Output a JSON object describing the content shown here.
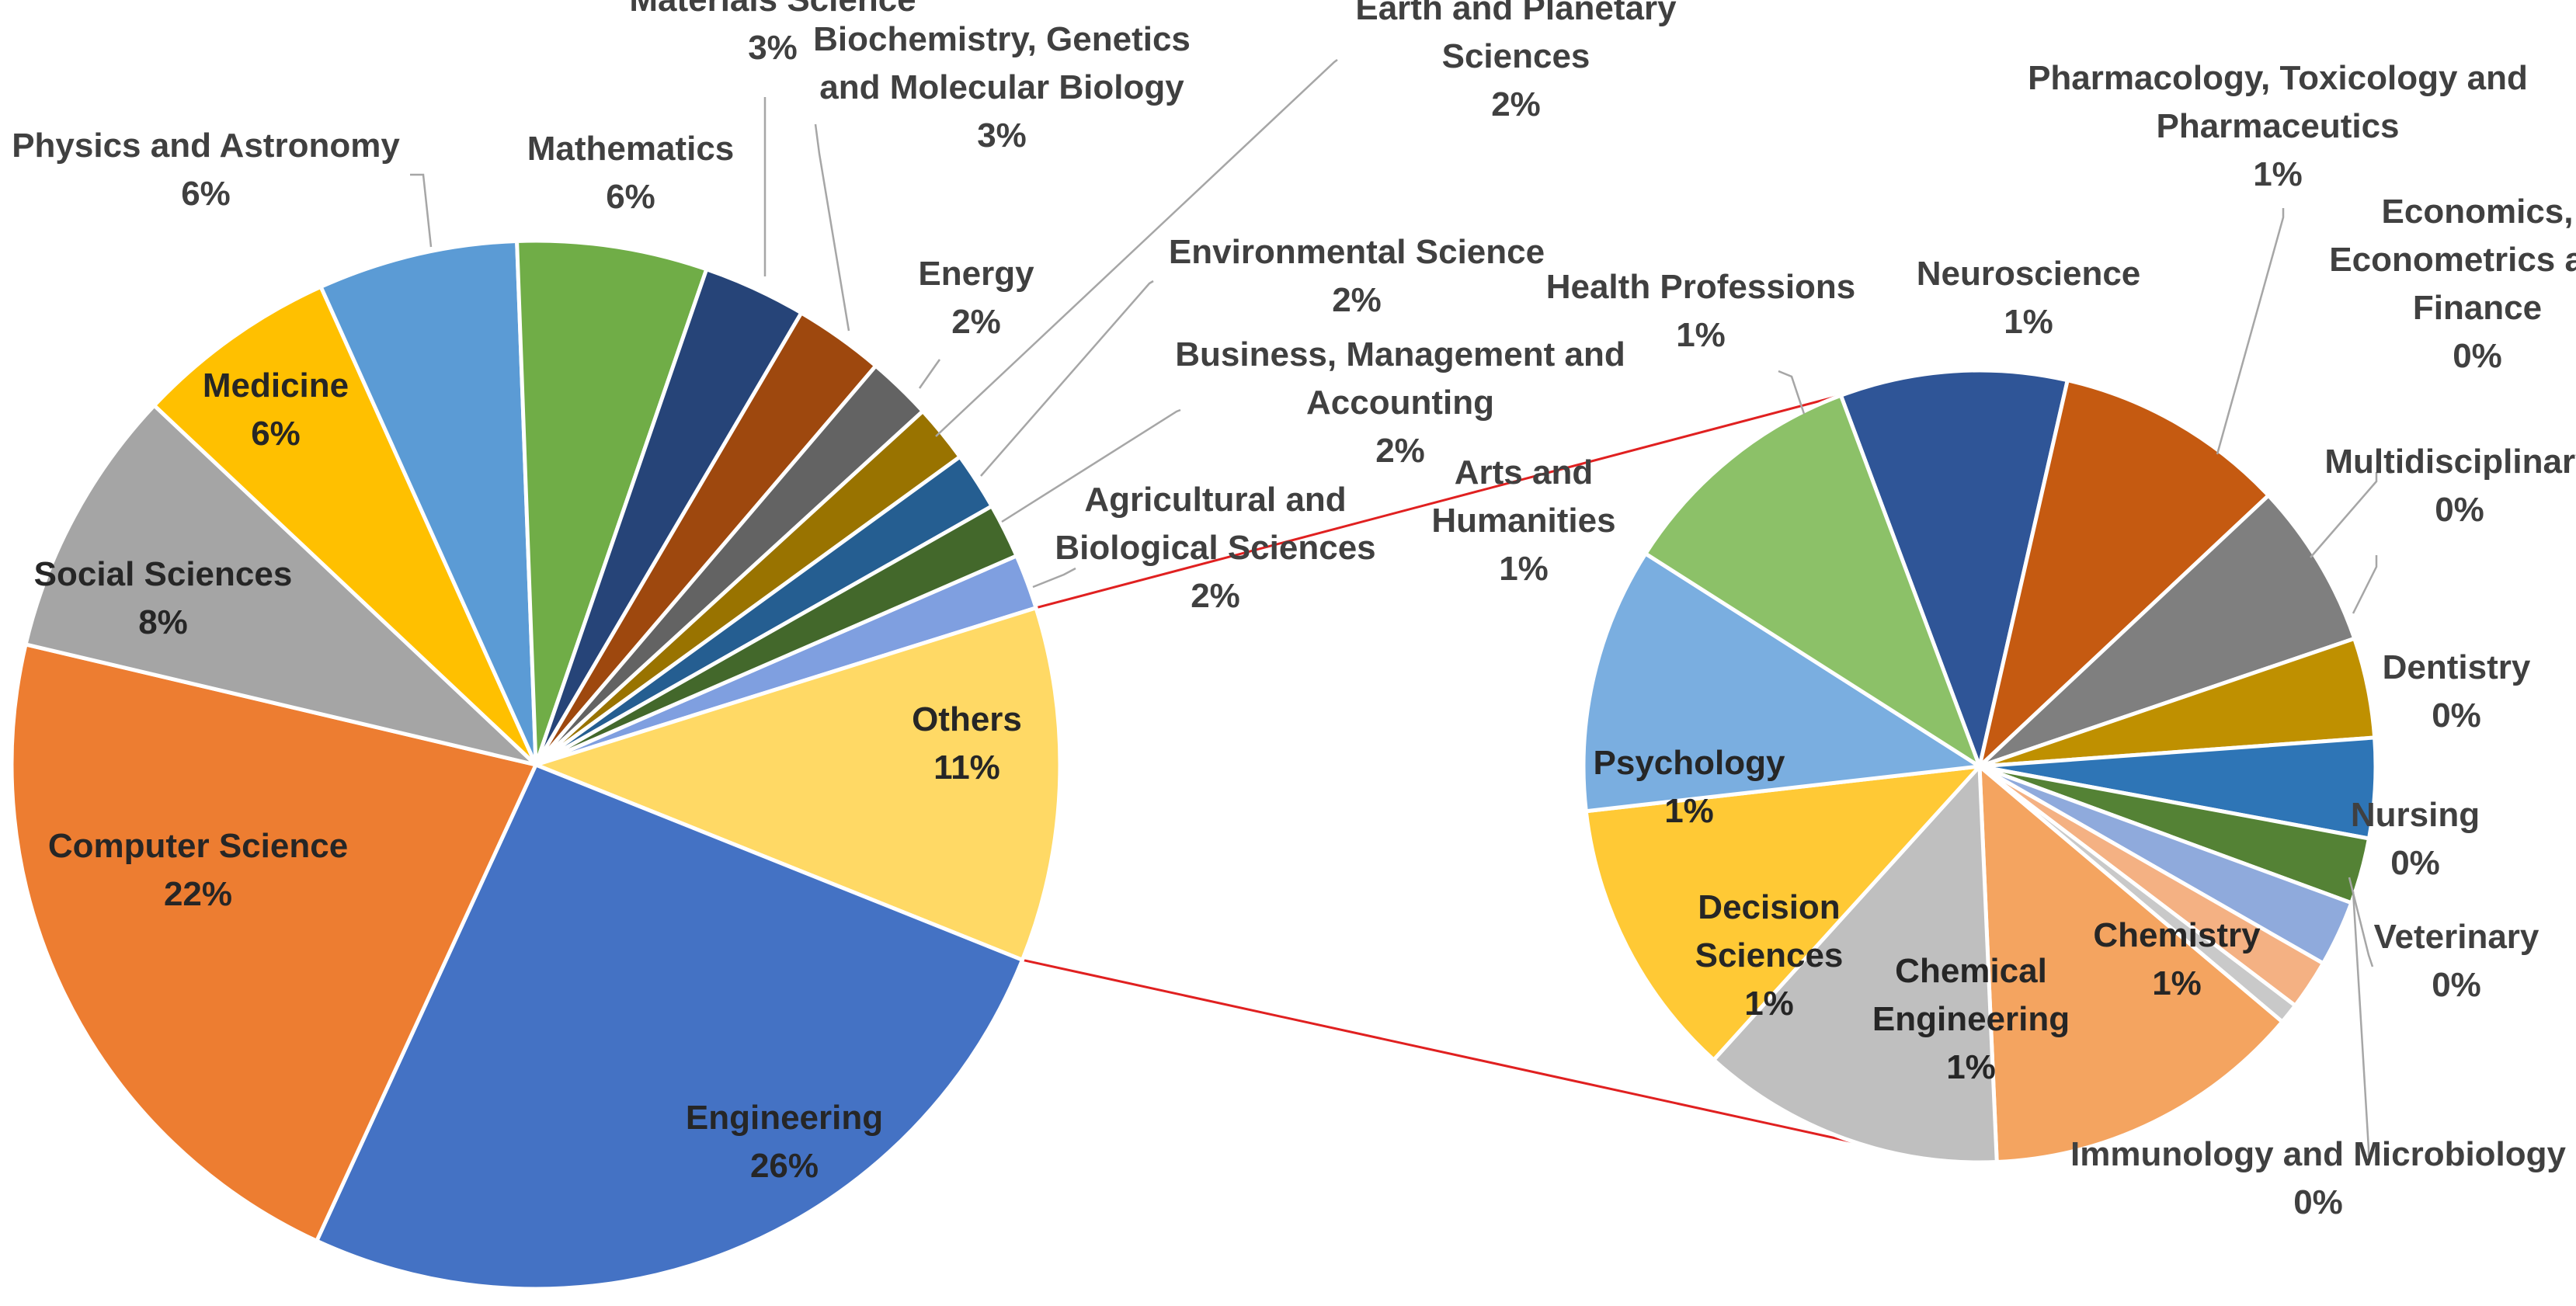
{
  "chart_data": [
    {
      "type": "pie",
      "name": "main",
      "slices": [
        {
          "label": "Agricultural and Biological Sciences",
          "lines": [
            "Agricultural and",
            "Biological Sciences"
          ],
          "pct_label": "2%",
          "value": 1.7,
          "color": "#7f9fe0"
        },
        {
          "label": "Others",
          "lines": [
            "Others"
          ],
          "pct_label": "11%",
          "value": 11,
          "color": "#ffd965"
        },
        {
          "label": "Engineering",
          "lines": [
            "Engineering"
          ],
          "pct_label": "26%",
          "value": 26,
          "color": "#4472c4"
        },
        {
          "label": "Computer Science",
          "lines": [
            "Computer Science"
          ],
          "pct_label": "22%",
          "value": 22,
          "color": "#ed7d31"
        },
        {
          "label": "Social Sciences",
          "lines": [
            "Social Sciences"
          ],
          "pct_label": "8%",
          "value": 8.4,
          "color": "#a5a5a5"
        },
        {
          "label": "Medicine",
          "lines": [
            "Medicine"
          ],
          "pct_label": "6%",
          "value": 6.3,
          "color": "#ffc000"
        },
        {
          "label": "Physics and Astronomy",
          "lines": [
            "Physics and Astronomy"
          ],
          "pct_label": "6%",
          "value": 6.2,
          "color": "#5b9bd5"
        },
        {
          "label": "Mathematics",
          "lines": [
            "Mathematics"
          ],
          "pct_label": "6%",
          "value": 5.9,
          "color": "#70ad47"
        },
        {
          "label": "Materials Science",
          "lines": [
            "Materials Science"
          ],
          "pct_label": "3%",
          "value": 3.2,
          "color": "#264478"
        },
        {
          "label": "Biochemistry, Genetics and Molecular Biology",
          "lines": [
            "Biochemistry, Genetics",
            "and Molecular Biology"
          ],
          "pct_label": "3%",
          "value": 2.8,
          "color": "#9e480e"
        },
        {
          "label": "Energy",
          "lines": [
            "Energy"
          ],
          "pct_label": "2%",
          "value": 2.0,
          "color": "#636363"
        },
        {
          "label": "Earth and Planetary Sciences",
          "lines": [
            "Earth and Planetary",
            "Sciences"
          ],
          "pct_label": "2%",
          "value": 1.8,
          "color": "#997300"
        },
        {
          "label": "Environmental Science",
          "lines": [
            "Environmental Science"
          ],
          "pct_label": "2%",
          "value": 1.8,
          "color": "#255e91"
        },
        {
          "label": "Business, Management and Accounting",
          "lines": [
            "Business, Management and",
            "Accounting"
          ],
          "pct_label": "2%",
          "value": 1.7,
          "color": "#43682b"
        }
      ]
    },
    {
      "type": "pie",
      "name": "others-breakdown",
      "slices": [
        {
          "label": "Health Professions",
          "lines": [
            "Health Professions"
          ],
          "pct_label": "1%",
          "value": 1.0,
          "color": "#2f5597"
        },
        {
          "label": "Neuroscience",
          "lines": [
            "Neuroscience"
          ],
          "pct_label": "1%",
          "value": 1.02,
          "color": "#c55a11"
        },
        {
          "label": "Pharmacology, Toxicology and Pharmaceutics",
          "lines": [
            "Pharmacology, Toxicology and",
            "Pharmaceutics"
          ],
          "pct_label": "1%",
          "value": 0.73,
          "color": "#7f7f7f"
        },
        {
          "label": "Economics, Econometrics and Finance",
          "lines": [
            "Economics,",
            "Econometrics and",
            "Finance"
          ],
          "pct_label": "0%",
          "value": 0.44,
          "color": "#bf9000"
        },
        {
          "label": "Multidisciplinary",
          "lines": [
            "Multidisciplinary"
          ],
          "pct_label": "0%",
          "value": 0.44,
          "color": "#2e75b6"
        },
        {
          "label": "Dentistry",
          "lines": [
            "Dentistry"
          ],
          "pct_label": "0%",
          "value": 0.29,
          "color": "#548235"
        },
        {
          "label": "Nursing",
          "lines": [
            "Nursing"
          ],
          "pct_label": "0%",
          "value": 0.29,
          "color": "#8faadc"
        },
        {
          "label": "Veterinary",
          "lines": [
            "Veterinary"
          ],
          "pct_label": "0%",
          "value": 0.22,
          "color": "#f4b183"
        },
        {
          "label": "Immunology and Microbiology",
          "lines": [
            "Immunology and Microbiology"
          ],
          "pct_label": "0%",
          "value": 0.09,
          "color": "#c9c9c9"
        },
        {
          "label": "Chemistry",
          "lines": [
            "Chemistry"
          ],
          "pct_label": "1%",
          "value": 1.42,
          "color": "#f4a460"
        },
        {
          "label": "Chemical Engineering",
          "lines": [
            "Chemical",
            "Engineering"
          ],
          "pct_label": "1%",
          "value": 1.34,
          "color": "#bfbfbf"
        },
        {
          "label": "Decision Sciences",
          "lines": [
            "Decision",
            "Sciences"
          ],
          "pct_label": "1%",
          "value": 1.24,
          "color": "#ffc935"
        },
        {
          "label": "Psychology",
          "lines": [
            "Psychology"
          ],
          "pct_label": "1%",
          "value": 1.17,
          "color": "#7aaee0"
        },
        {
          "label": "Arts and Humanities",
          "lines": [
            "Arts and",
            "Humanities"
          ],
          "pct_label": "1%",
          "value": 1.11,
          "color": "#8cc168"
        }
      ]
    }
  ]
}
